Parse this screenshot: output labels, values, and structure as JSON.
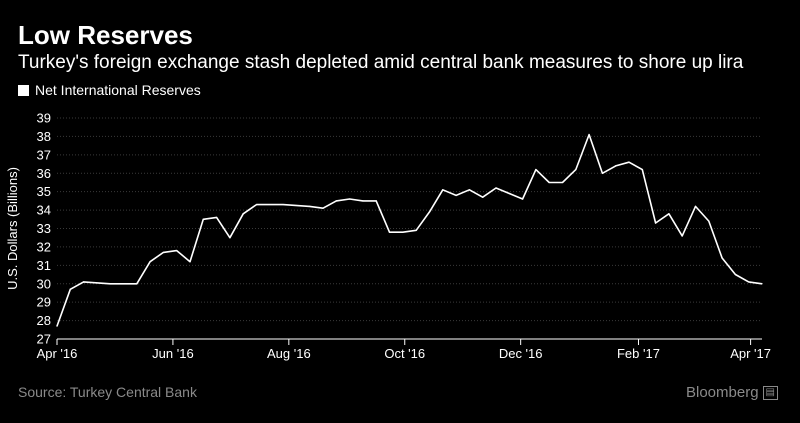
{
  "header": {
    "title": "Low Reserves",
    "subtitle": "Turkey's foreign exchange stash depleted amid central bank measures to shore up lira"
  },
  "legend": {
    "label": "Net International Reserves"
  },
  "footer": {
    "source": "Source: Turkey Central Bank",
    "brand": "Bloomberg"
  },
  "colors": {
    "background": "#000000",
    "line": "#ffffff",
    "grid": "#3a3a3a",
    "muted": "#8a8a8a"
  },
  "chart_data": {
    "type": "line",
    "title": "Low Reserves",
    "ylabel": "U.S. Dollars (Billions)",
    "xlabel": "",
    "ylim": [
      27,
      39
    ],
    "yticks": [
      27,
      28,
      29,
      30,
      31,
      32,
      33,
      34,
      35,
      36,
      37,
      38,
      39
    ],
    "xlim": [
      "2016-04-01",
      "2017-04-07"
    ],
    "xticks": [
      {
        "date": "2016-04-01",
        "label": "Apr '16"
      },
      {
        "date": "2016-06-01",
        "label": "Jun '16"
      },
      {
        "date": "2016-08-01",
        "label": "Aug '16"
      },
      {
        "date": "2016-10-01",
        "label": "Oct '16"
      },
      {
        "date": "2016-12-01",
        "label": "Dec '16"
      },
      {
        "date": "2017-02-01",
        "label": "Feb '17"
      },
      {
        "date": "2017-04-01",
        "label": "Apr '17"
      }
    ],
    "grid": true,
    "legend_position": "top-left",
    "series": [
      {
        "name": "Net International Reserves",
        "points": [
          [
            "2016-04-01",
            27.7
          ],
          [
            "2016-04-08",
            29.7
          ],
          [
            "2016-04-15",
            30.1
          ],
          [
            "2016-04-29",
            30.0
          ],
          [
            "2016-05-13",
            30.0
          ],
          [
            "2016-05-20",
            31.2
          ],
          [
            "2016-05-27",
            31.7
          ],
          [
            "2016-06-03",
            31.8
          ],
          [
            "2016-06-10",
            31.2
          ],
          [
            "2016-06-17",
            33.5
          ],
          [
            "2016-06-24",
            33.6
          ],
          [
            "2016-07-01",
            32.5
          ],
          [
            "2016-07-08",
            33.8
          ],
          [
            "2016-07-15",
            34.3
          ],
          [
            "2016-07-29",
            34.3
          ],
          [
            "2016-08-12",
            34.2
          ],
          [
            "2016-08-19",
            34.1
          ],
          [
            "2016-08-26",
            34.5
          ],
          [
            "2016-09-02",
            34.6
          ],
          [
            "2016-09-09",
            34.5
          ],
          [
            "2016-09-16",
            34.5
          ],
          [
            "2016-09-23",
            32.8
          ],
          [
            "2016-09-30",
            32.8
          ],
          [
            "2016-10-07",
            32.9
          ],
          [
            "2016-10-14",
            33.9
          ],
          [
            "2016-10-21",
            35.1
          ],
          [
            "2016-10-28",
            34.8
          ],
          [
            "2016-11-04",
            35.1
          ],
          [
            "2016-11-11",
            34.7
          ],
          [
            "2016-11-18",
            35.2
          ],
          [
            "2016-11-25",
            34.9
          ],
          [
            "2016-12-02",
            34.6
          ],
          [
            "2016-12-09",
            36.2
          ],
          [
            "2016-12-16",
            35.5
          ],
          [
            "2016-12-23",
            35.5
          ],
          [
            "2016-12-30",
            36.2
          ],
          [
            "2017-01-06",
            38.1
          ],
          [
            "2017-01-13",
            36.0
          ],
          [
            "2017-01-20",
            36.4
          ],
          [
            "2017-01-27",
            36.6
          ],
          [
            "2017-02-03",
            36.2
          ],
          [
            "2017-02-10",
            33.3
          ],
          [
            "2017-02-17",
            33.8
          ],
          [
            "2017-02-24",
            32.6
          ],
          [
            "2017-03-03",
            34.2
          ],
          [
            "2017-03-10",
            33.4
          ],
          [
            "2017-03-17",
            31.4
          ],
          [
            "2017-03-24",
            30.5
          ],
          [
            "2017-03-31",
            30.1
          ],
          [
            "2017-04-07",
            30.0
          ]
        ]
      }
    ]
  }
}
